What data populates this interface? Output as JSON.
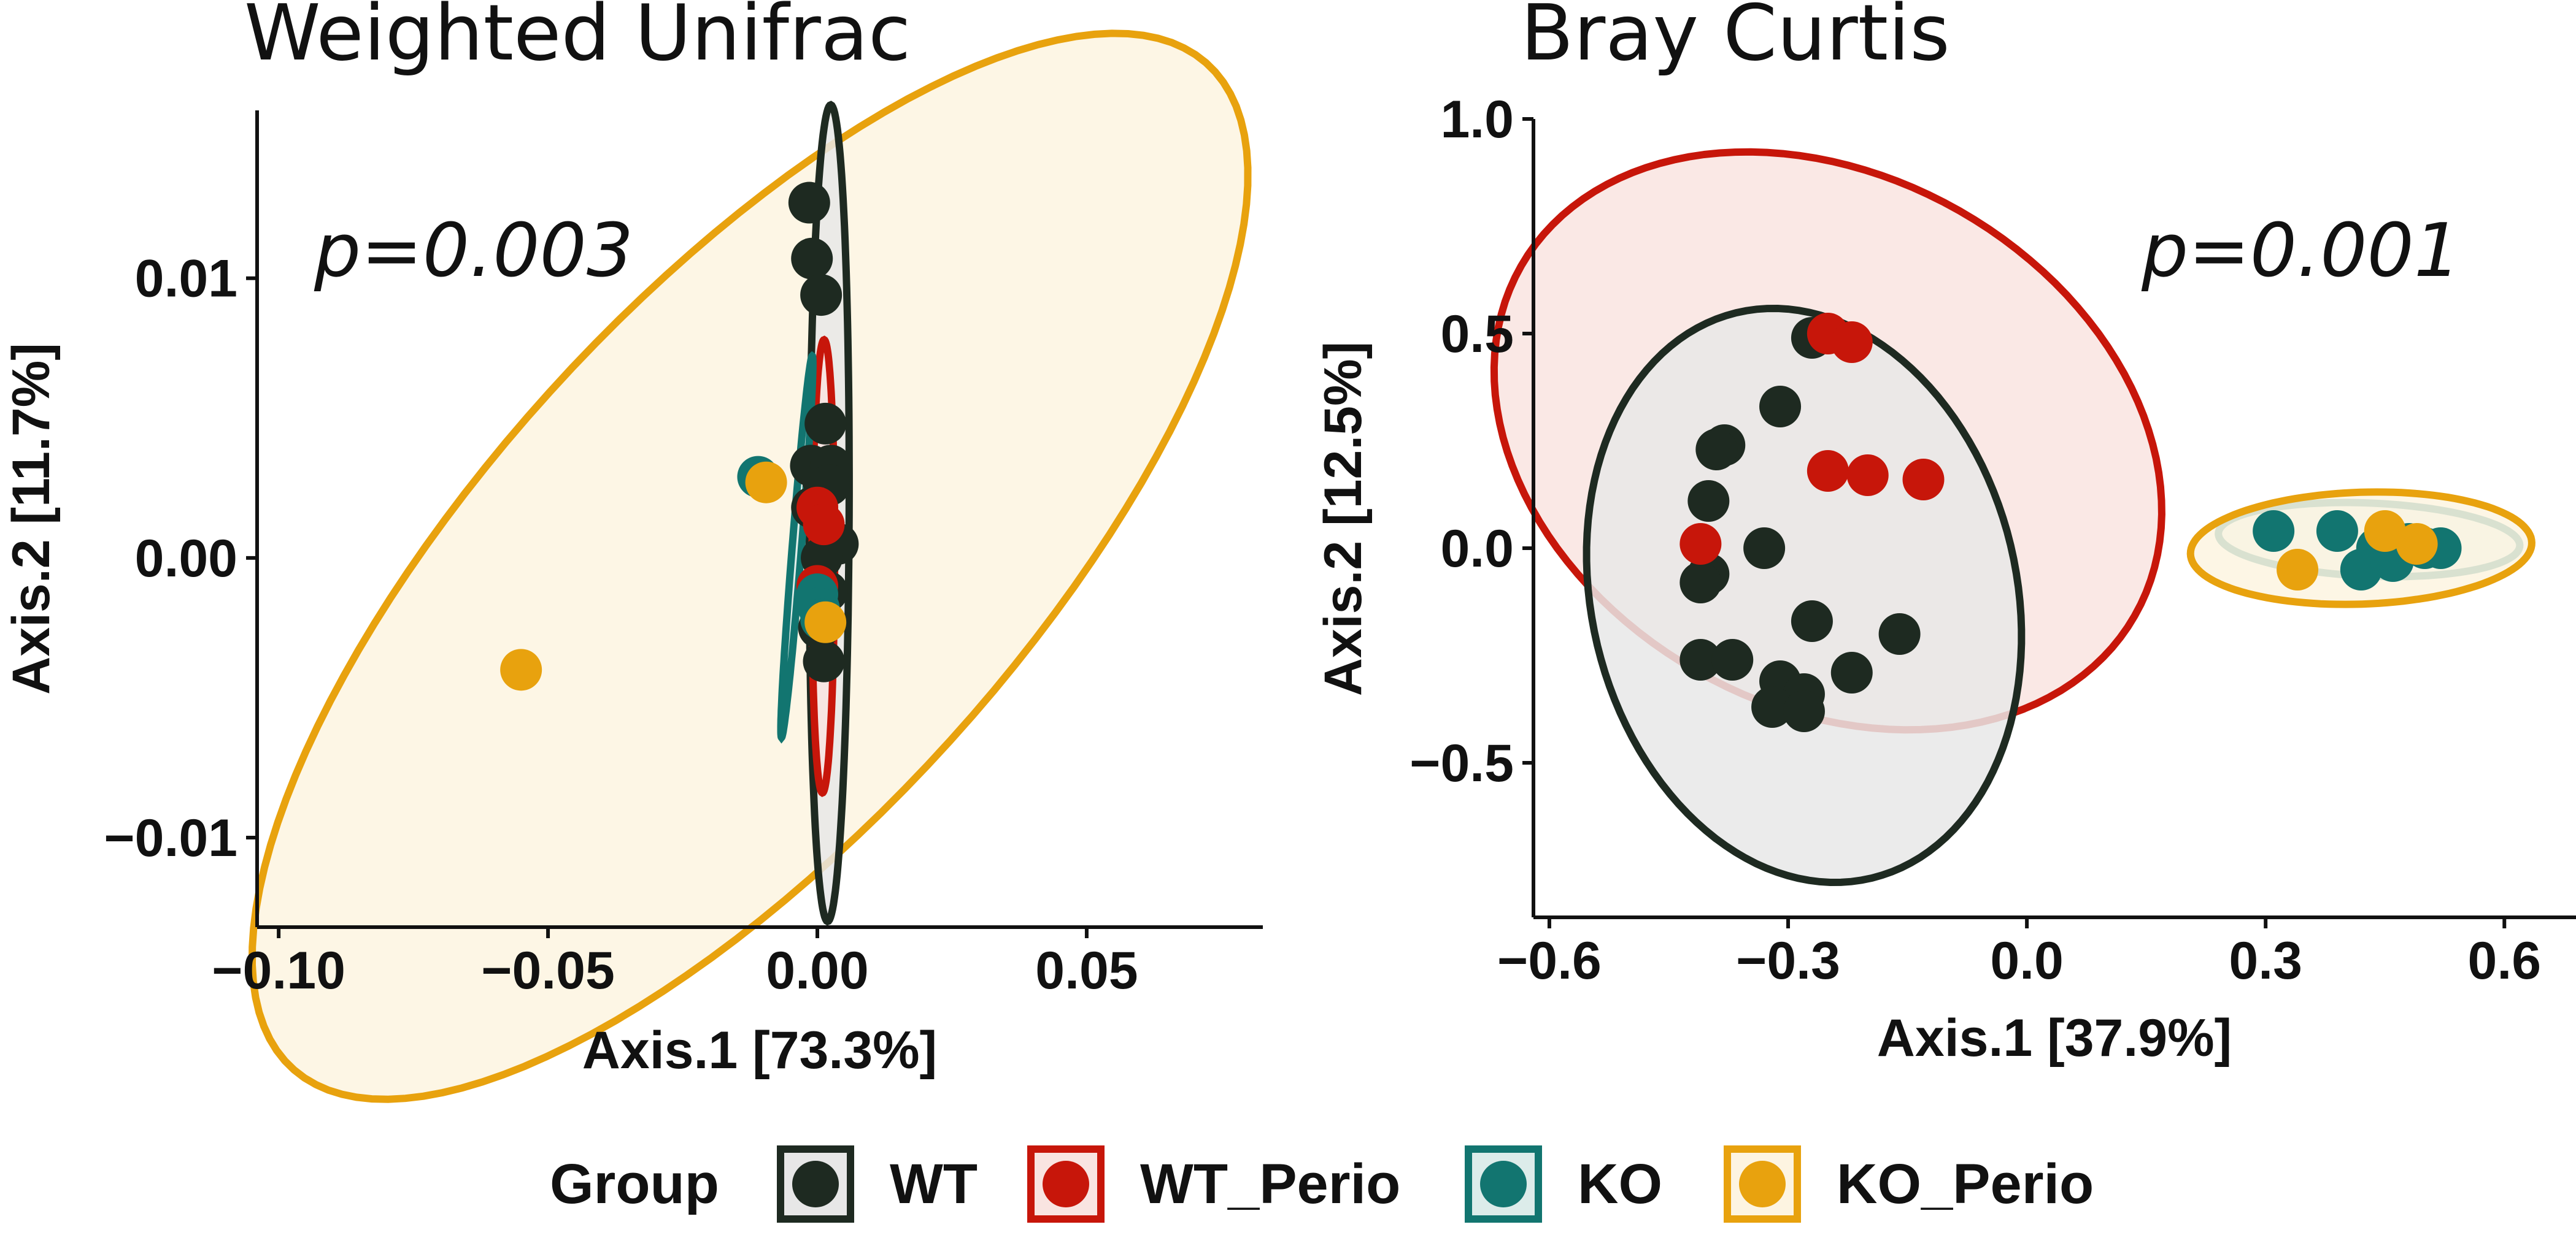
{
  "legend": {
    "title": "Group",
    "groups": [
      {
        "name": "WT",
        "color": "#1e2a21",
        "fill": "#e7e7e7"
      },
      {
        "name": "WT_Perio",
        "color": "#c7160a",
        "fill": "#f9e4e1"
      },
      {
        "name": "KO",
        "color": "#127570",
        "fill": "#dcecea"
      },
      {
        "name": "KO_Perio",
        "color": "#e8a20e",
        "fill": "#fdf4e1"
      }
    ]
  },
  "chart_data": [
    {
      "type": "scatter",
      "title": "Weighted Unifrac",
      "annotation": "p=0.003",
      "xlabel": "Axis.1   [73.3%]",
      "ylabel": "Axis.2   [11.7%]",
      "xlim": [
        -0.104,
        0.0827
      ],
      "ylim": [
        -0.0132,
        0.016
      ],
      "xticks": [
        -0.1,
        -0.05,
        0.0,
        0.05
      ],
      "xtick_labels": [
        "−0.10",
        "−0.05",
        "0.00",
        "0.05"
      ],
      "yticks": [
        -0.01,
        0.0,
        0.01
      ],
      "ytick_labels": [
        "−0.01",
        "0.00",
        "0.01"
      ],
      "series": [
        {
          "name": "WT",
          "points": [
            [
              -0.0015,
              0.0127
            ],
            [
              -0.001,
              0.0107
            ],
            [
              0.0007,
              0.0094
            ],
            [
              0.0015,
              0.0048
            ],
            [
              -0.0012,
              0.0033
            ],
            [
              0.001,
              0.0028
            ],
            [
              0.0025,
              0.0033
            ],
            [
              0.0022,
              0.0026
            ],
            [
              0.0038,
              0.0005
            ],
            [
              0.0008,
              0.0
            ],
            [
              0.0018,
              -0.0012
            ],
            [
              0.0003,
              -0.0025
            ],
            [
              0.0012,
              -0.0037
            ],
            [
              -0.001,
              0.0018
            ]
          ]
        },
        {
          "name": "WT_Perio",
          "points": [
            [
              0.0,
              0.0018
            ],
            [
              0.0012,
              0.0012
            ],
            [
              0.0,
              -0.001
            ]
          ]
        },
        {
          "name": "KO",
          "points": [
            [
              -0.011,
              0.0029
            ],
            [
              0.0,
              -0.0013
            ],
            [
              0.0003,
              -0.0018
            ],
            [
              0.0007,
              -0.0022
            ]
          ]
        },
        {
          "name": "KO_Perio",
          "points": [
            [
              -0.055,
              -0.004
            ],
            [
              -0.0095,
              0.0027
            ],
            [
              0.0015,
              -0.0023
            ]
          ]
        }
      ],
      "ellipses": [
        {
          "group": "KO_Perio",
          "cx": -0.0125,
          "cy": -0.0003,
          "rx": 0.0935,
          "ry": 0.0128,
          "angle": 0.153
        },
        {
          "group": "WT",
          "cx": 0.0022,
          "cy": 0.0016,
          "rx": 0.0146,
          "ry": 0.0037,
          "angle": 1.55
        },
        {
          "group": "WT_Perio",
          "cx": 0.0011,
          "cy": -0.0003,
          "rx": 0.0081,
          "ry": 0.0021,
          "angle": 1.55
        },
        {
          "group": "KO",
          "cx": -0.0038,
          "cy": 0.0004,
          "rx": 0.0074,
          "ry": 0.0008,
          "angle": 1.17
        }
      ]
    },
    {
      "type": "scatter",
      "title": "Bray Curtis",
      "annotation": "p=0.001",
      "xlabel": "Axis.1   [37.9%]",
      "ylabel": "Axis.2   [12.5%]",
      "xlim": [
        -0.62,
        0.69
      ],
      "ylim": [
        -0.86,
        1.0
      ],
      "xticks": [
        -0.6,
        -0.3,
        0.0,
        0.3,
        0.6
      ],
      "xtick_labels": [
        "−0.6",
        "−0.3",
        "0.0",
        "0.3",
        "0.6"
      ],
      "yticks": [
        -0.5,
        0.0,
        0.5,
        1.0
      ],
      "ytick_labels": [
        "−0.5",
        "0.0",
        "0.5",
        "1.0"
      ],
      "series": [
        {
          "name": "WT",
          "points": [
            [
              -0.27,
              0.49
            ],
            [
              -0.31,
              0.33
            ],
            [
              -0.38,
              0.24
            ],
            [
              -0.39,
              0.23
            ],
            [
              -0.4,
              0.11
            ],
            [
              -0.33,
              0.0
            ],
            [
              -0.4,
              -0.06
            ],
            [
              -0.41,
              -0.08
            ],
            [
              -0.27,
              -0.17
            ],
            [
              -0.16,
              -0.2
            ],
            [
              -0.41,
              -0.26
            ],
            [
              -0.37,
              -0.26
            ],
            [
              -0.22,
              -0.29
            ],
            [
              -0.31,
              -0.31
            ],
            [
              -0.28,
              -0.34
            ],
            [
              -0.32,
              -0.37
            ],
            [
              -0.28,
              -0.38
            ]
          ]
        },
        {
          "name": "WT_Perio",
          "points": [
            [
              -0.25,
              0.5
            ],
            [
              -0.22,
              0.48
            ],
            [
              -0.25,
              0.18
            ],
            [
              -0.2,
              0.17
            ],
            [
              -0.13,
              0.16
            ],
            [
              -0.41,
              0.01
            ]
          ]
        },
        {
          "name": "KO",
          "points": [
            [
              0.31,
              0.04
            ],
            [
              0.39,
              0.04
            ],
            [
              0.44,
              0.0
            ],
            [
              0.48,
              0.01
            ],
            [
              0.5,
              0.0
            ],
            [
              0.52,
              0.0
            ],
            [
              0.46,
              -0.03
            ],
            [
              0.42,
              -0.05
            ]
          ]
        },
        {
          "name": "KO_Perio",
          "points": [
            [
              0.34,
              -0.05
            ],
            [
              0.45,
              0.04
            ],
            [
              0.49,
              0.01
            ]
          ]
        }
      ],
      "ellipses": [
        {
          "group": "WT_Perio",
          "cx": -0.25,
          "cy": 0.25,
          "rx": 0.685,
          "ry": 0.4,
          "angle": 1.8
        },
        {
          "group": "WT",
          "cx": -0.28,
          "cy": -0.11,
          "rx": 0.67,
          "ry": 0.27,
          "angle": 1.64
        },
        {
          "group": "KO",
          "cx": 0.43,
          "cy": 0.02,
          "rx": 0.19,
          "ry": 0.085,
          "angle": -0.09
        },
        {
          "group": "KO_Perio",
          "cx": 0.42,
          "cy": 0.0,
          "rx": 0.215,
          "ry": 0.13,
          "angle": 0.09
        }
      ]
    }
  ]
}
